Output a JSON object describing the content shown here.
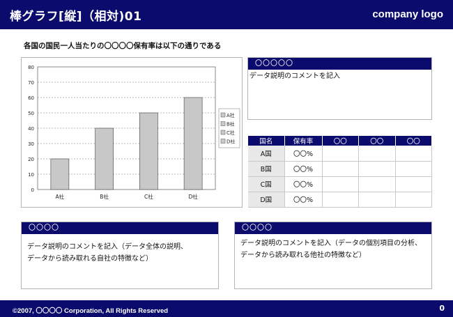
{
  "header": {
    "title": "棒グラフ[縦]（相対)01",
    "logo": "company logo"
  },
  "subtitle": "各国の国民一人当たりの〇〇〇〇保有率は以下の通りである",
  "chart_data": {
    "type": "bar",
    "categories": [
      "A社",
      "B社",
      "C社",
      "D社"
    ],
    "values": [
      20,
      40,
      50,
      60
    ],
    "ylim": [
      0,
      80
    ],
    "yticks": [
      "0",
      "10",
      "20",
      "30",
      "40",
      "50",
      "60",
      "70",
      "80"
    ],
    "legend": [
      "A社",
      "B社",
      "C社",
      "D社"
    ],
    "legend_placement": "right",
    "grid": true,
    "bar_color": "#c8c8c8"
  },
  "panel_top_right": {
    "title": "〇〇〇〇〇",
    "body": "データ説明のコメントを記入"
  },
  "table": {
    "headers": [
      "国名",
      "保有率",
      "〇〇",
      "〇〇",
      "〇〇"
    ],
    "rows": [
      {
        "name": "A国",
        "rate": "〇〇%"
      },
      {
        "name": "B国",
        "rate": "〇〇%"
      },
      {
        "name": "C国",
        "rate": "〇〇%"
      },
      {
        "name": "D国",
        "rate": "〇〇%"
      }
    ]
  },
  "panel_bottom_left": {
    "title": "〇〇〇〇",
    "line1": "データ説明のコメントを記入（データ全体の説明、",
    "line2": "データから読み取れる自社の特徴など）"
  },
  "panel_bottom_right": {
    "title": "〇〇〇〇",
    "line1": "データ説明のコメントを記入（データの個別項目の分析、",
    "line2": "データから読み取れる他社の特徴など）"
  },
  "footer": {
    "copyright": "©2007, 〇〇〇〇 Corporation, All Rights Reserved",
    "page": "0"
  },
  "colors": {
    "accent": "#0b0b6e"
  }
}
